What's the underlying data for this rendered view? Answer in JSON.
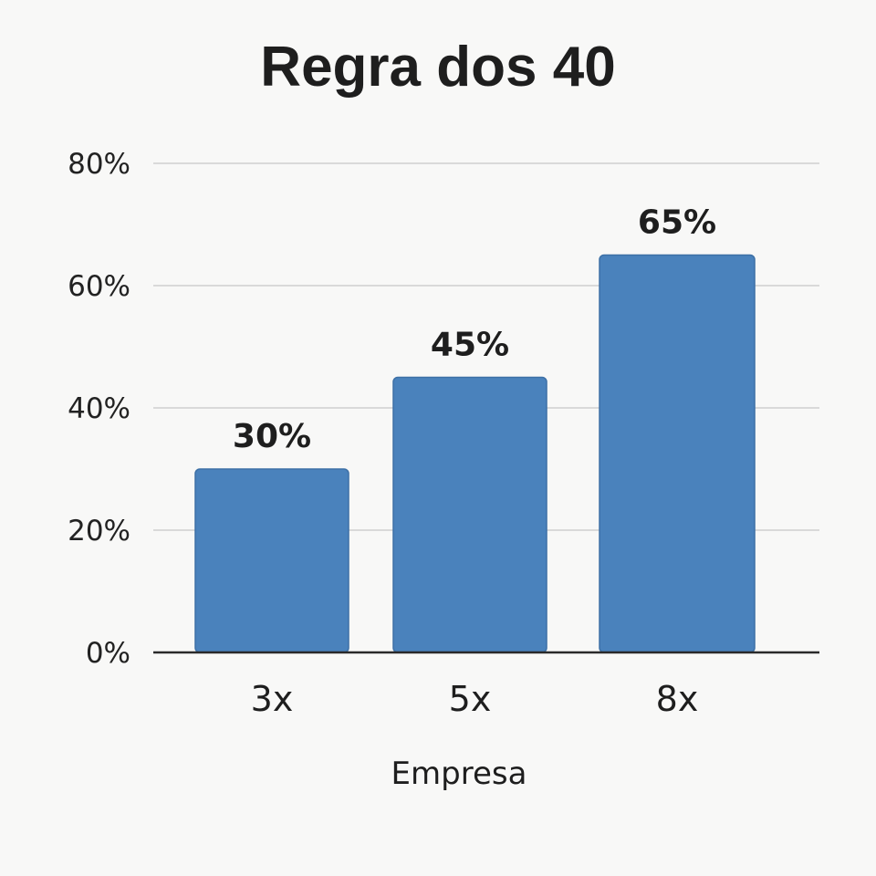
{
  "chart_data": {
    "type": "bar",
    "title": "Regra dos 40",
    "xlabel": "Empresa",
    "ylabel": "",
    "categories": [
      "3x",
      "5x",
      "8x"
    ],
    "values": [
      30,
      45,
      65
    ],
    "data_labels": [
      "30%",
      "45%",
      "65%"
    ],
    "ylim": [
      0,
      80
    ],
    "yticks": [
      0,
      20,
      40,
      60,
      80
    ],
    "ytick_labels": [
      "0%",
      "20%",
      "40%",
      "60%",
      "80%"
    ],
    "grid": true,
    "legend": "none",
    "colors": {
      "bar": "#4a82bc",
      "bar_edge": "#3d70a6"
    }
  }
}
